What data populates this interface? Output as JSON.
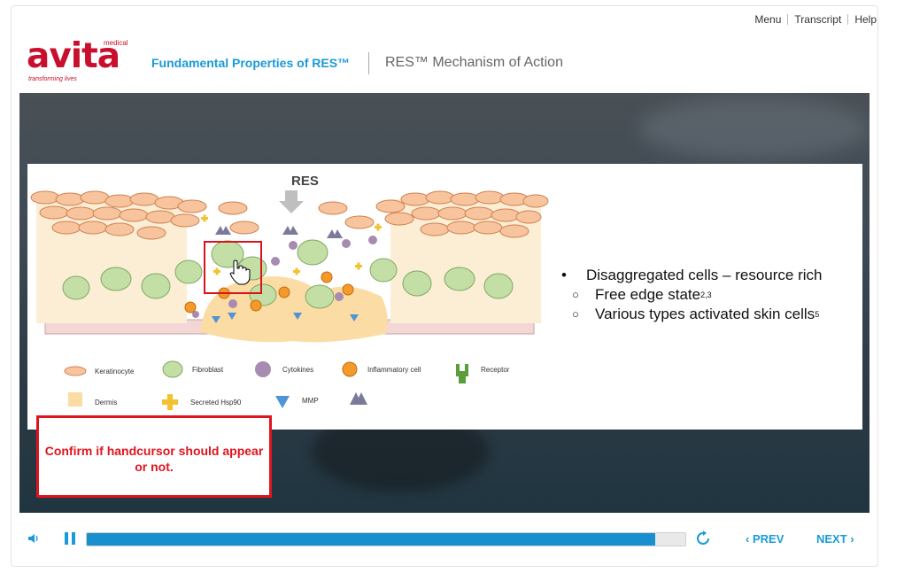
{
  "nav": {
    "menu": "Menu",
    "transcript": "Transcript",
    "help": "Help"
  },
  "logo": {
    "word": "avita",
    "superscript": "medical",
    "tagline": "transforming lives"
  },
  "header": {
    "course_title": "Fundamental Properties of RES™",
    "slide_title": "RES™ Mechanism of Action"
  },
  "diagram": {
    "arrow_label": "RES",
    "legend": {
      "keratinocyte": "Keratinocyte",
      "fibroblast": "Fibroblast",
      "cytokines": "Cytokines",
      "inflammatory": "Inflammatory cell",
      "receptor": "Receptor",
      "dermis": "Dermis",
      "hsp90": "Secreted Hsp90",
      "mmp": "MMP"
    }
  },
  "bullets": {
    "main": "Disaggregated cells – resource rich",
    "sub1": "Free edge state",
    "sub1_refs": "2,3",
    "sub2": "Various types activated skin cells",
    "sub2_refs": "5"
  },
  "note": "Confirm if handcursor should appear or not.",
  "controls": {
    "prev": "PREV",
    "next": "NEXT",
    "progress": 0.95
  },
  "colors": {
    "accent": "#1a9ad6",
    "brand": "#c8102e",
    "note_border": "#e0141e"
  },
  "icons": {
    "volume": "volume-icon",
    "pause": "pause-icon",
    "replay": "replay-icon",
    "prev": "chevron-left-icon",
    "next": "chevron-right-icon",
    "cursor": "hand-cursor-icon"
  }
}
